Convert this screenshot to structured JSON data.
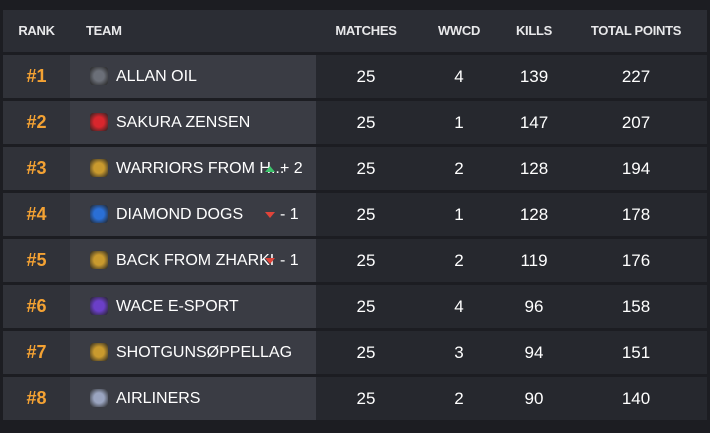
{
  "header": [
    "RANK",
    "TEAM",
    "MATCHES",
    "WWCD",
    "KILLS",
    "TOTAL POINTS"
  ],
  "rows": [
    {
      "rank": "#1",
      "team": "ALLAN OIL",
      "matches": 25,
      "wwcd": 4,
      "kills": 139,
      "points": 227
    },
    {
      "rank": "#2",
      "team": "SAKURA ZENSEN",
      "matches": 25,
      "wwcd": 1,
      "kills": 147,
      "points": 207
    },
    {
      "rank": "#3",
      "team": "WARRIORS FROM H...",
      "change": {
        "direction": "up",
        "label": "+ 2"
      },
      "matches": 25,
      "wwcd": 2,
      "kills": 128,
      "points": 194
    },
    {
      "rank": "#4",
      "team": "DIAMOND DOGS",
      "change": {
        "direction": "down",
        "label": "- 1"
      },
      "matches": 25,
      "wwcd": 1,
      "kills": 128,
      "points": 178
    },
    {
      "rank": "#5",
      "team": "BACK FROM ZHARKI",
      "change": {
        "direction": "down",
        "label": "- 1"
      },
      "matches": 25,
      "wwcd": 2,
      "kills": 119,
      "points": 176
    },
    {
      "rank": "#6",
      "team": "WACE E-SPORT",
      "matches": 25,
      "wwcd": 4,
      "kills": 96,
      "points": 158
    },
    {
      "rank": "#7",
      "team": "SHOTGUNSØPPELLAG",
      "matches": 25,
      "wwcd": 3,
      "kills": 94,
      "points": 151
    },
    {
      "rank": "#8",
      "team": "AIRLINERS",
      "matches": 25,
      "wwcd": 2,
      "kills": 90,
      "points": 140
    }
  ]
}
